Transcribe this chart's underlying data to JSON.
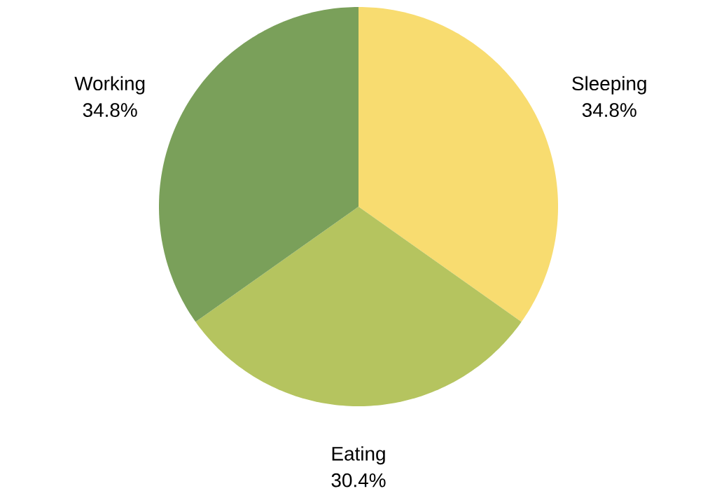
{
  "chart_data": {
    "type": "pie",
    "categories": [
      "Sleeping",
      "Eating",
      "Working"
    ],
    "values": [
      34.8,
      30.4,
      34.8
    ],
    "value_labels": [
      "34.8%",
      "30.4%",
      "34.8%"
    ],
    "colors": [
      "#f8dc70",
      "#b5c45f",
      "#7aa05a"
    ]
  }
}
